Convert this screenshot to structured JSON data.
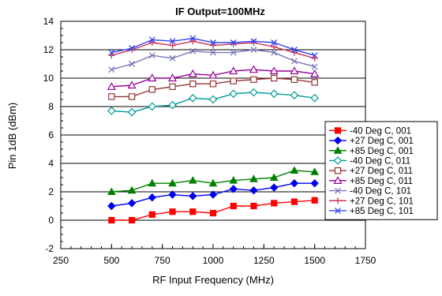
{
  "chart_data": {
    "type": "line",
    "title": "IF Output=100MHz",
    "xlabel": "RF Input Frequency (MHz)",
    "ylabel": "Pin 1dB (dBm)",
    "xlim": [
      250,
      1750
    ],
    "ylim": [
      -2,
      14
    ],
    "xticks": [
      250,
      500,
      750,
      1000,
      1250,
      1500,
      1750
    ],
    "yticks": [
      -2,
      0,
      2,
      4,
      6,
      8,
      10,
      12,
      14
    ],
    "x_minor_step": 50,
    "y_minor_step": 0.5,
    "grid": "horizontal major",
    "legend_position": "right",
    "x": [
      500,
      600,
      700,
      800,
      900,
      1000,
      1100,
      1200,
      1300,
      1400,
      1500
    ],
    "series": [
      {
        "name": "-40 Deg C, 001",
        "color": "#ff0000",
        "marker": "square-filled",
        "values": [
          0.0,
          0.0,
          0.4,
          0.6,
          0.6,
          0.5,
          1.0,
          1.0,
          1.2,
          1.3,
          1.4
        ]
      },
      {
        "name": "+27 Deg C, 001",
        "color": "#0000ee",
        "marker": "diamond-filled",
        "values": [
          1.0,
          1.2,
          1.6,
          1.8,
          1.7,
          1.8,
          2.2,
          2.1,
          2.3,
          2.6,
          2.6
        ]
      },
      {
        "name": "+85 Deg C, 001",
        "color": "#008000",
        "marker": "triangle-filled",
        "values": [
          2.0,
          2.1,
          2.6,
          2.6,
          2.8,
          2.6,
          2.8,
          2.9,
          3.0,
          3.5,
          3.4
        ]
      },
      {
        "name": "-40 Deg C, 011",
        "color": "#009999",
        "marker": "diamond-open",
        "values": [
          7.7,
          7.6,
          8.0,
          8.1,
          8.6,
          8.5,
          8.9,
          9.0,
          8.9,
          8.8,
          8.6
        ]
      },
      {
        "name": "+27 Deg C, 011",
        "color": "#993333",
        "marker": "square-open",
        "values": [
          8.7,
          8.7,
          9.2,
          9.4,
          9.6,
          9.6,
          9.8,
          9.9,
          10.0,
          9.9,
          9.7
        ]
      },
      {
        "name": "+85 Deg C, 011",
        "color": "#990099",
        "marker": "triangle-open",
        "values": [
          9.4,
          9.5,
          10.0,
          10.0,
          10.3,
          10.2,
          10.5,
          10.6,
          10.5,
          10.5,
          10.3
        ]
      },
      {
        "name": "-40 Deg C, 101",
        "color": "#7777bb",
        "marker": "x",
        "values": [
          10.6,
          11.0,
          11.6,
          11.4,
          11.9,
          11.8,
          11.8,
          12.0,
          11.8,
          11.2,
          10.8
        ]
      },
      {
        "name": "+27 Deg C, 101",
        "color": "#cc3355",
        "marker": "plus",
        "values": [
          11.6,
          12.0,
          12.5,
          12.3,
          12.6,
          12.3,
          12.4,
          12.5,
          12.2,
          11.8,
          11.4
        ]
      },
      {
        "name": "+85 Deg C, 101",
        "color": "#3344ee",
        "marker": "x",
        "values": [
          11.8,
          12.1,
          12.7,
          12.6,
          12.8,
          12.5,
          12.5,
          12.6,
          12.5,
          12.0,
          11.6
        ]
      }
    ]
  }
}
